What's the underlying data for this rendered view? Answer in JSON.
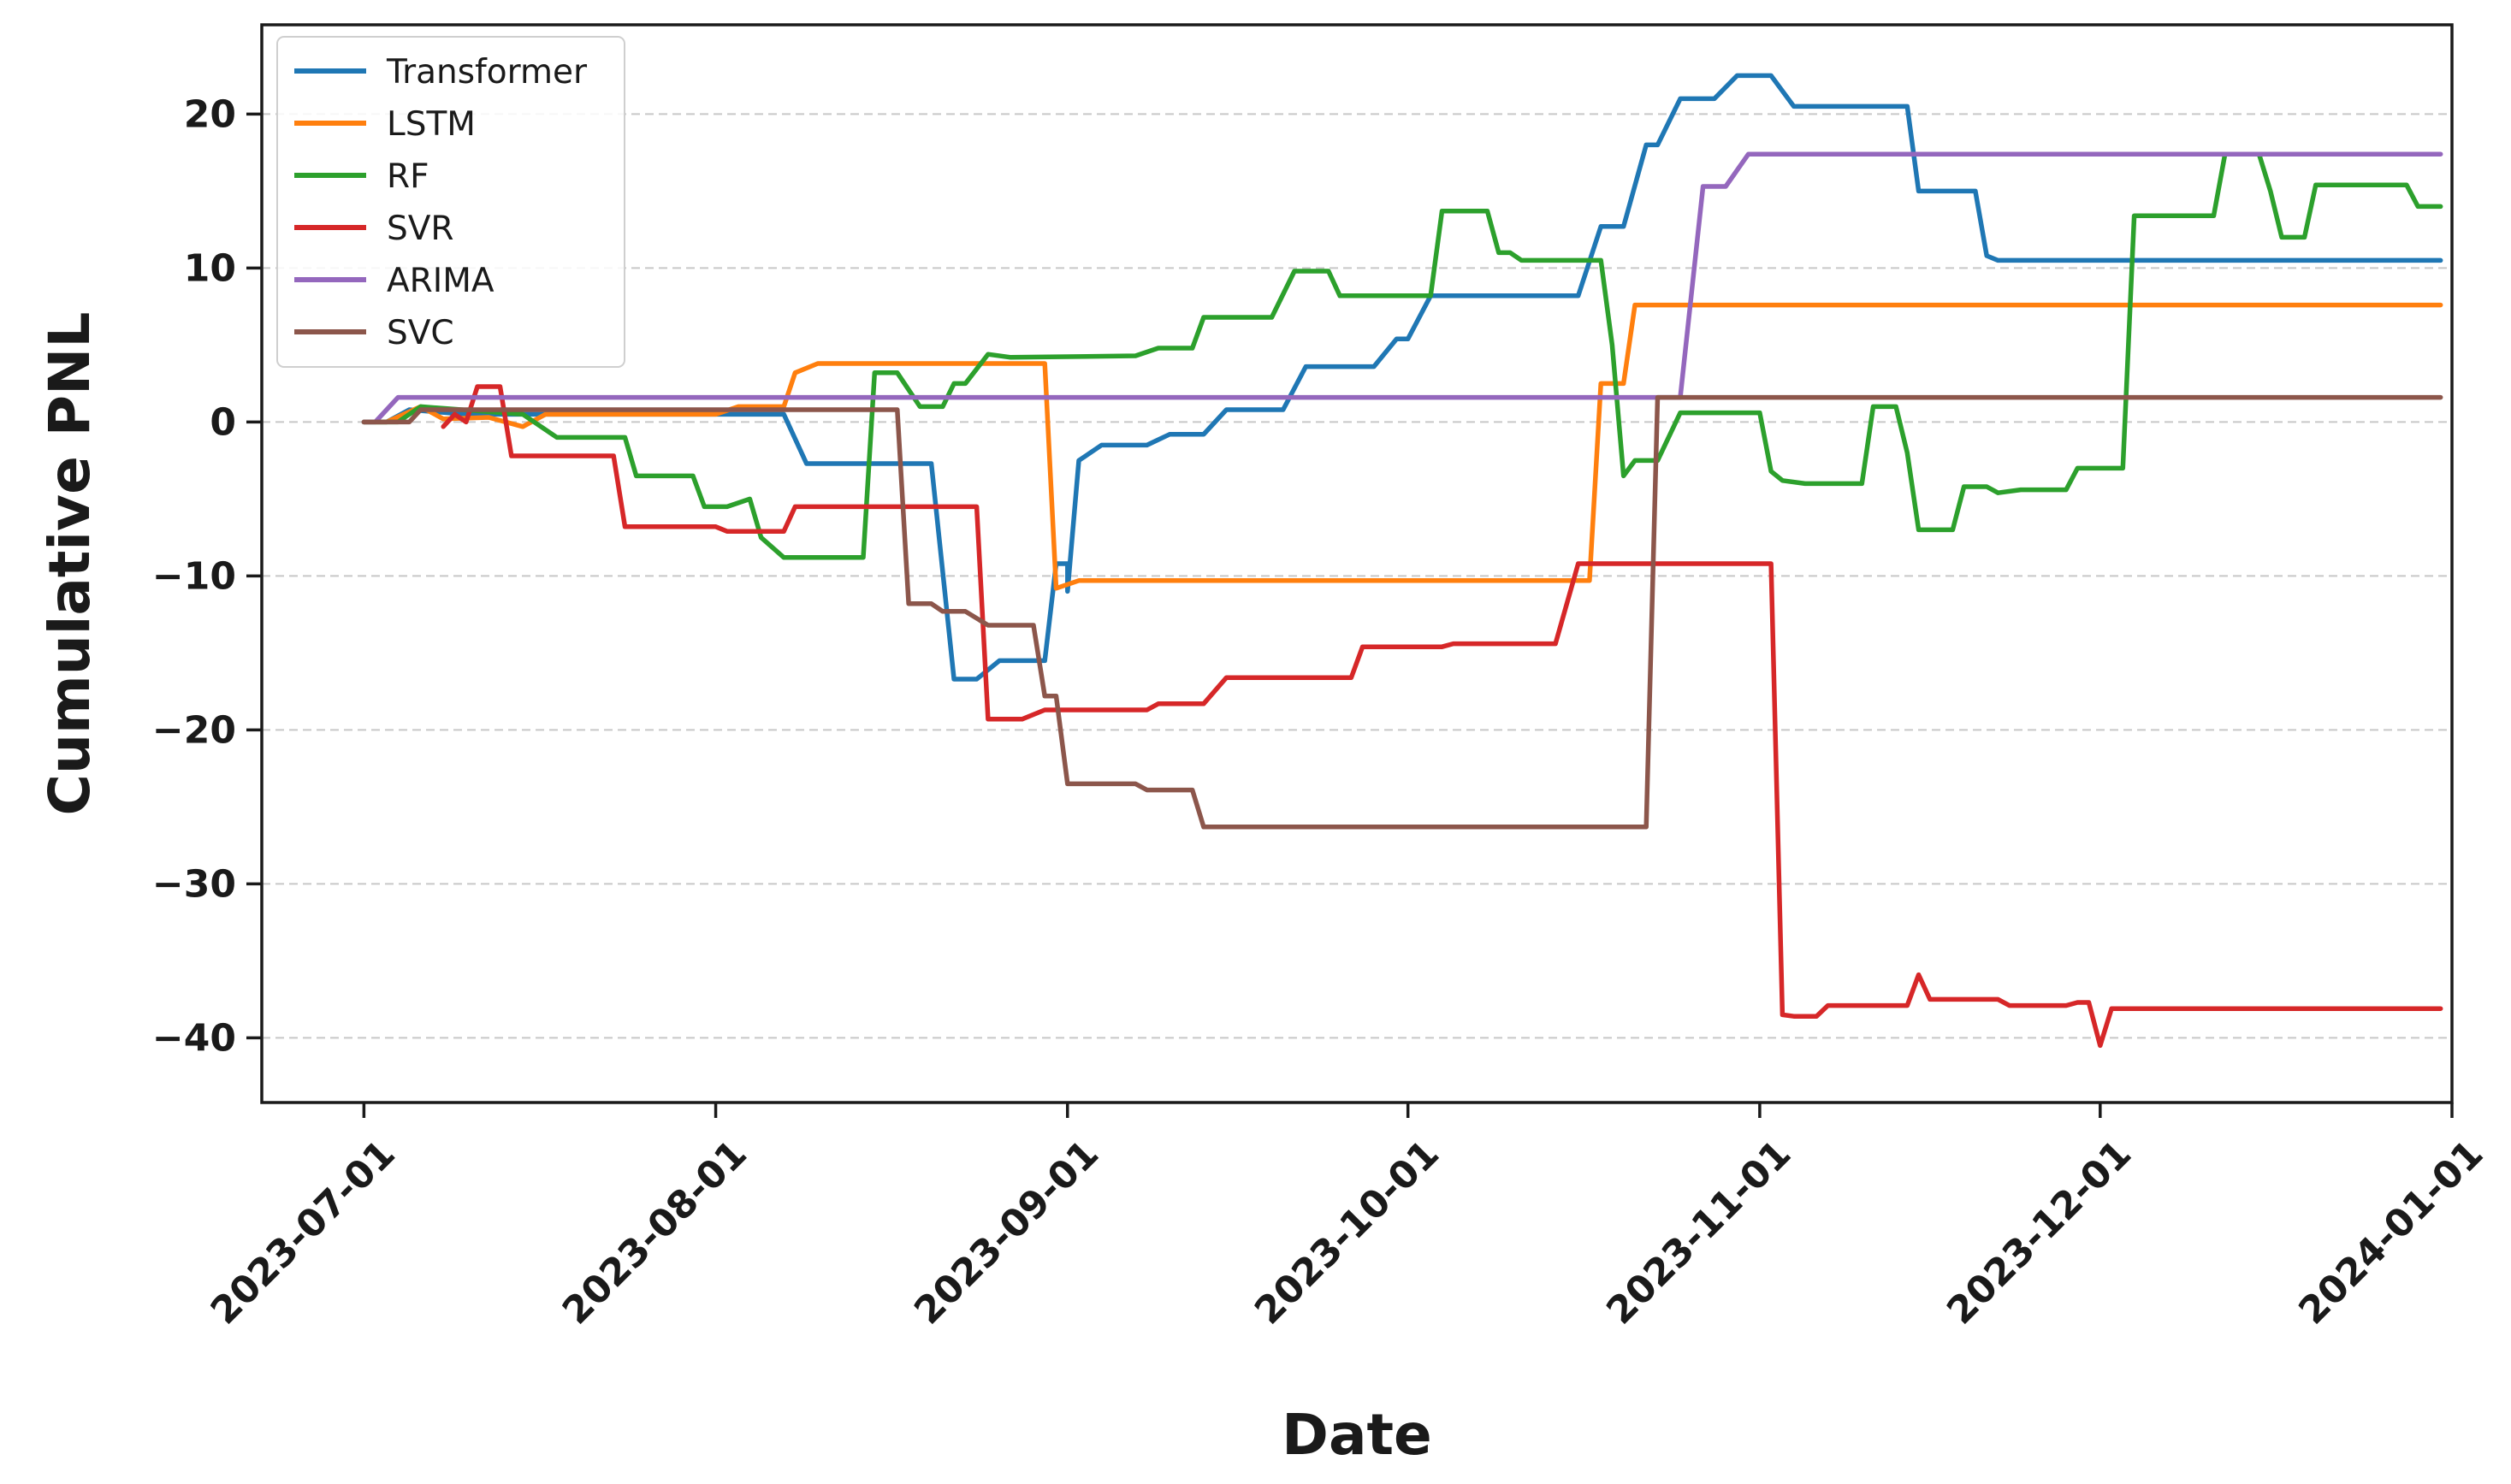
{
  "chart_data": {
    "type": "line",
    "xlabel": "Date",
    "ylabel": "Cumulative PNL",
    "x_axis": {
      "type": "date",
      "range": [
        "2023-06-22",
        "2024-01-01"
      ],
      "ticks": [
        "2023-07-01",
        "2023-08-01",
        "2023-09-01",
        "2023-10-01",
        "2023-11-01",
        "2023-12-01",
        "2024-01-01"
      ]
    },
    "y_axis": {
      "range": [
        -44.2,
        25.8
      ],
      "ticks": [
        -40,
        -30,
        -20,
        -10,
        0,
        10,
        20
      ],
      "tick_labels": [
        "−40",
        "−30",
        "−20",
        "−10",
        "0",
        "10",
        "20"
      ]
    },
    "grid": {
      "y": true,
      "x": false,
      "style": "dashed"
    },
    "legend": {
      "position": "top-left"
    },
    "series": [
      {
        "name": "Transformer",
        "color": "#1f77b4",
        "points": [
          [
            "2023-07-01",
            0
          ],
          [
            "2023-07-03",
            0
          ],
          [
            "2023-07-05",
            0.8
          ],
          [
            "2023-07-10",
            0.5
          ],
          [
            "2023-08-07",
            0.5
          ],
          [
            "2023-08-09",
            -2.7
          ],
          [
            "2023-08-20",
            -2.7
          ],
          [
            "2023-08-22",
            -16.7
          ],
          [
            "2023-08-24",
            -16.7
          ],
          [
            "2023-08-26",
            -15.5
          ],
          [
            "2023-08-30",
            -15.5
          ],
          [
            "2023-08-31",
            -9.2
          ],
          [
            "2023-09-01",
            -9.2
          ],
          [
            "2023-09-01",
            -11
          ],
          [
            "2023-09-02",
            -2.5
          ],
          [
            "2023-09-04",
            -1.5
          ],
          [
            "2023-09-08",
            -1.5
          ],
          [
            "2023-09-10",
            -0.8
          ],
          [
            "2023-09-13",
            -0.8
          ],
          [
            "2023-09-15",
            0.8
          ],
          [
            "2023-09-20",
            0.8
          ],
          [
            "2023-09-22",
            3.6
          ],
          [
            "2023-09-28",
            3.6
          ],
          [
            "2023-09-30",
            5.4
          ],
          [
            "2023-10-01",
            5.4
          ],
          [
            "2023-10-03",
            8.2
          ],
          [
            "2023-10-16",
            8.2
          ],
          [
            "2023-10-18",
            12.7
          ],
          [
            "2023-10-20",
            12.7
          ],
          [
            "2023-10-22",
            18.0
          ],
          [
            "2023-10-23",
            18.0
          ],
          [
            "2023-10-25",
            21.0
          ],
          [
            "2023-10-28",
            21.0
          ],
          [
            "2023-10-30",
            22.5
          ],
          [
            "2023-11-02",
            22.5
          ],
          [
            "2023-11-04",
            20.5
          ],
          [
            "2023-11-14",
            20.5
          ],
          [
            "2023-11-15",
            15.0
          ],
          [
            "2023-11-20",
            15.0
          ],
          [
            "2023-11-21",
            10.8
          ],
          [
            "2023-11-22",
            10.5
          ],
          [
            "2023-12-31",
            10.5
          ]
        ]
      },
      {
        "name": "LSTM",
        "color": "#ff7f0e",
        "points": [
          [
            "2023-07-01",
            0
          ],
          [
            "2023-07-03",
            0
          ],
          [
            "2023-07-06",
            1.0
          ],
          [
            "2023-07-08",
            0.2
          ],
          [
            "2023-07-12",
            0.3
          ],
          [
            "2023-07-15",
            -0.3
          ],
          [
            "2023-07-17",
            0.5
          ],
          [
            "2023-07-20",
            0.5
          ],
          [
            "2023-08-01",
            0.5
          ],
          [
            "2023-08-03",
            1.0
          ],
          [
            "2023-08-07",
            1.0
          ],
          [
            "2023-08-08",
            3.2
          ],
          [
            "2023-08-10",
            3.8
          ],
          [
            "2023-08-30",
            3.8
          ],
          [
            "2023-08-31",
            -10.8
          ],
          [
            "2023-09-02",
            -10.3
          ],
          [
            "2023-10-17",
            -10.3
          ],
          [
            "2023-10-18",
            2.5
          ],
          [
            "2023-10-20",
            2.5
          ],
          [
            "2023-10-21",
            7.6
          ],
          [
            "2023-12-31",
            7.6
          ]
        ]
      },
      {
        "name": "RF",
        "color": "#2ca02c",
        "points": [
          [
            "2023-07-01",
            0
          ],
          [
            "2023-07-04",
            0
          ],
          [
            "2023-07-06",
            1.0
          ],
          [
            "2023-07-15",
            0.5
          ],
          [
            "2023-07-17",
            -0.5
          ],
          [
            "2023-07-18",
            -1.0
          ],
          [
            "2023-07-24",
            -1.0
          ],
          [
            "2023-07-25",
            -3.5
          ],
          [
            "2023-07-30",
            -3.5
          ],
          [
            "2023-07-31",
            -5.5
          ],
          [
            "2023-08-02",
            -5.5
          ],
          [
            "2023-08-04",
            -5.0
          ],
          [
            "2023-08-05",
            -7.5
          ],
          [
            "2023-08-07",
            -8.8
          ],
          [
            "2023-08-14",
            -8.8
          ],
          [
            "2023-08-15",
            3.2
          ],
          [
            "2023-08-17",
            3.2
          ],
          [
            "2023-08-19",
            1.0
          ],
          [
            "2023-08-21",
            1.0
          ],
          [
            "2023-08-22",
            2.5
          ],
          [
            "2023-08-23",
            2.5
          ],
          [
            "2023-08-25",
            4.4
          ],
          [
            "2023-08-27",
            4.2
          ],
          [
            "2023-09-07",
            4.3
          ],
          [
            "2023-09-09",
            4.8
          ],
          [
            "2023-09-12",
            4.8
          ],
          [
            "2023-09-13",
            6.8
          ],
          [
            "2023-09-19",
            6.8
          ],
          [
            "2023-09-21",
            9.8
          ],
          [
            "2023-09-24",
            9.8
          ],
          [
            "2023-09-25",
            8.2
          ],
          [
            "2023-10-03",
            8.2
          ],
          [
            "2023-10-04",
            13.7
          ],
          [
            "2023-10-08",
            13.7
          ],
          [
            "2023-10-09",
            11.0
          ],
          [
            "2023-10-10",
            11.0
          ],
          [
            "2023-10-11",
            10.5
          ],
          [
            "2023-10-18",
            10.5
          ],
          [
            "2023-10-19",
            5.0
          ],
          [
            "2023-10-20",
            -3.5
          ],
          [
            "2023-10-21",
            -2.5
          ],
          [
            "2023-10-23",
            -2.5
          ],
          [
            "2023-10-25",
            0.6
          ],
          [
            "2023-11-01",
            0.6
          ],
          [
            "2023-11-02",
            -3.2
          ],
          [
            "2023-11-03",
            -3.8
          ],
          [
            "2023-11-05",
            -4.0
          ],
          [
            "2023-11-10",
            -4.0
          ],
          [
            "2023-11-11",
            1.0
          ],
          [
            "2023-11-13",
            1.0
          ],
          [
            "2023-11-14",
            -2.0
          ],
          [
            "2023-11-15",
            -7.0
          ],
          [
            "2023-11-18",
            -7.0
          ],
          [
            "2023-11-19",
            -4.2
          ],
          [
            "2023-11-21",
            -4.2
          ],
          [
            "2023-11-22",
            -4.6
          ],
          [
            "2023-11-24",
            -4.4
          ],
          [
            "2023-11-28",
            -4.4
          ],
          [
            "2023-11-29",
            -3.0
          ],
          [
            "2023-12-03",
            -3.0
          ],
          [
            "2023-12-04",
            13.4
          ],
          [
            "2023-12-11",
            13.4
          ],
          [
            "2023-12-12",
            17.4
          ],
          [
            "2023-12-15",
            17.4
          ],
          [
            "2023-12-16",
            15.0
          ],
          [
            "2023-12-17",
            12.0
          ],
          [
            "2023-12-19",
            12.0
          ],
          [
            "2023-12-20",
            15.4
          ],
          [
            "2023-12-28",
            15.4
          ],
          [
            "2023-12-29",
            14.0
          ],
          [
            "2023-12-31",
            14.0
          ]
        ]
      },
      {
        "name": "SVR",
        "color": "#d62728",
        "points": [
          [
            "2023-07-08",
            -0.3
          ],
          [
            "2023-07-09",
            0.5
          ],
          [
            "2023-07-10",
            0
          ],
          [
            "2023-07-11",
            2.3
          ],
          [
            "2023-07-13",
            2.3
          ],
          [
            "2023-07-14",
            -2.2
          ],
          [
            "2023-07-23",
            -2.2
          ],
          [
            "2023-07-24",
            -6.8
          ],
          [
            "2023-08-01",
            -6.8
          ],
          [
            "2023-08-02",
            -7.1
          ],
          [
            "2023-08-07",
            -7.1
          ],
          [
            "2023-08-08",
            -5.5
          ],
          [
            "2023-08-24",
            -5.5
          ],
          [
            "2023-08-25",
            -19.3
          ],
          [
            "2023-08-28",
            -19.3
          ],
          [
            "2023-08-30",
            -18.7
          ],
          [
            "2023-09-08",
            -18.7
          ],
          [
            "2023-09-09",
            -18.3
          ],
          [
            "2023-09-13",
            -18.3
          ],
          [
            "2023-09-15",
            -16.6
          ],
          [
            "2023-09-26",
            -16.6
          ],
          [
            "2023-09-27",
            -14.6
          ],
          [
            "2023-10-04",
            -14.6
          ],
          [
            "2023-10-05",
            -14.4
          ],
          [
            "2023-10-14",
            -14.4
          ],
          [
            "2023-10-16",
            -9.2
          ],
          [
            "2023-11-02",
            -9.2
          ],
          [
            "2023-11-03",
            -38.5
          ],
          [
            "2023-11-04",
            -38.6
          ],
          [
            "2023-11-06",
            -38.6
          ],
          [
            "2023-11-07",
            -37.9
          ],
          [
            "2023-11-14",
            -37.9
          ],
          [
            "2023-11-15",
            -35.9
          ],
          [
            "2023-11-16",
            -37.5
          ],
          [
            "2023-11-22",
            -37.5
          ],
          [
            "2023-11-23",
            -37.9
          ],
          [
            "2023-11-28",
            -37.9
          ],
          [
            "2023-11-29",
            -37.7
          ],
          [
            "2023-11-30",
            -37.7
          ],
          [
            "2023-12-01",
            -40.5
          ],
          [
            "2023-12-02",
            -38.1
          ],
          [
            "2023-12-31",
            -38.1
          ]
        ]
      },
      {
        "name": "ARIMA",
        "color": "#9467bd",
        "points": [
          [
            "2023-07-01",
            0
          ],
          [
            "2023-07-02",
            0
          ],
          [
            "2023-07-04",
            1.6
          ],
          [
            "2023-10-25",
            1.6
          ],
          [
            "2023-10-27",
            15.3
          ],
          [
            "2023-10-29",
            15.3
          ],
          [
            "2023-10-31",
            17.4
          ],
          [
            "2023-12-31",
            17.4
          ]
        ]
      },
      {
        "name": "SVC",
        "color": "#8c564b",
        "points": [
          [
            "2023-07-01",
            0
          ],
          [
            "2023-07-05",
            0
          ],
          [
            "2023-07-06",
            0.8
          ],
          [
            "2023-08-17",
            0.8
          ],
          [
            "2023-08-18",
            -11.8
          ],
          [
            "2023-08-20",
            -11.8
          ],
          [
            "2023-08-21",
            -12.3
          ],
          [
            "2023-08-23",
            -12.3
          ],
          [
            "2023-08-25",
            -13.2
          ],
          [
            "2023-08-29",
            -13.2
          ],
          [
            "2023-08-30",
            -17.8
          ],
          [
            "2023-08-31",
            -17.8
          ],
          [
            "2023-09-01",
            -23.5
          ],
          [
            "2023-09-07",
            -23.5
          ],
          [
            "2023-09-08",
            -23.9
          ],
          [
            "2023-09-12",
            -23.9
          ],
          [
            "2023-09-13",
            -26.3
          ],
          [
            "2023-10-22",
            -26.3
          ],
          [
            "2023-10-23",
            1.6
          ],
          [
            "2023-12-31",
            1.6
          ]
        ]
      }
    ]
  }
}
